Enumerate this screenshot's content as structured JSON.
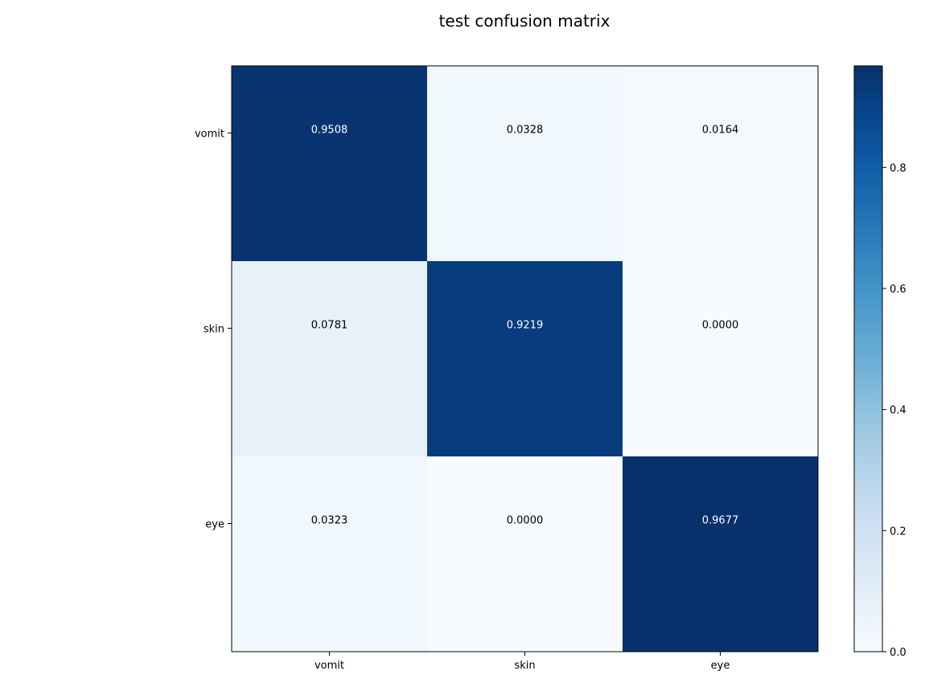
{
  "chart_data": {
    "type": "heatmap",
    "title": "test confusion matrix",
    "xlabel": "",
    "ylabel": "",
    "x_categories": [
      "vomit",
      "skin",
      "eye"
    ],
    "y_categories": [
      "vomit",
      "skin",
      "eye"
    ],
    "values": [
      [
        0.9508,
        0.0328,
        0.0164
      ],
      [
        0.0781,
        0.9219,
        0.0
      ],
      [
        0.0323,
        0.0,
        0.9677
      ]
    ],
    "cell_labels": [
      [
        "0.9508",
        "0.0328",
        "0.0164"
      ],
      [
        "0.0781",
        "0.9219",
        "0.0000"
      ],
      [
        "0.0323",
        "0.0000",
        "0.9677"
      ]
    ],
    "colormap": "Blues",
    "colorbar": {
      "range": [
        0,
        0.9677
      ],
      "ticks": [
        0.0,
        0.2,
        0.4,
        0.6,
        0.8
      ],
      "tick_labels": [
        "0.0",
        "0.2",
        "0.4",
        "0.6",
        "0.8"
      ]
    },
    "grid": false
  }
}
